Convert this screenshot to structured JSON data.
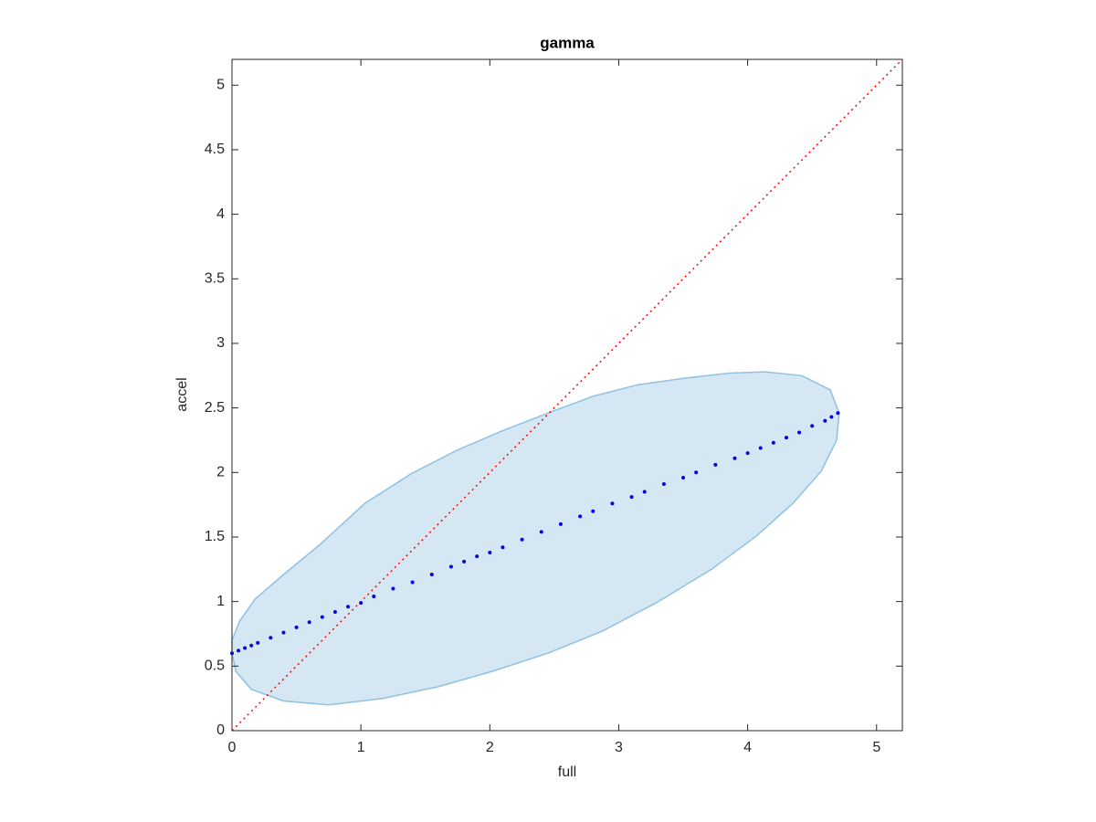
{
  "chart_data": {
    "type": "scatter",
    "title": "gamma",
    "xlabel": "full",
    "ylabel": "accel",
    "xlim": [
      0,
      5.2
    ],
    "ylim": [
      0,
      5.2
    ],
    "xticks": [
      0,
      1,
      2,
      3,
      4,
      5
    ],
    "yticks": [
      0,
      0.5,
      1,
      1.5,
      2,
      2.5,
      3,
      3.5,
      4,
      4.5,
      5
    ],
    "box": true,
    "region": {
      "color": "#d6e7f4",
      "edge_color": "#8fc1e3",
      "x": [
        0,
        0.06,
        0.18,
        0.4,
        0.68,
        1.03,
        1.39,
        1.74,
        2.09,
        2.45,
        2.8,
        3.15,
        3.51,
        3.86,
        4.14,
        4.42,
        4.64,
        4.71,
        4.69,
        4.57,
        4.35,
        4.07,
        3.72,
        3.29,
        2.87,
        2.45,
        2.02,
        1.6,
        1.17,
        0.75,
        0.4,
        0.15,
        0.03,
        0
      ],
      "y": [
        0.7,
        0.85,
        1.02,
        1.21,
        1.44,
        1.76,
        1.99,
        2.17,
        2.32,
        2.46,
        2.59,
        2.68,
        2.73,
        2.77,
        2.78,
        2.75,
        2.64,
        2.46,
        2.25,
        2.01,
        1.76,
        1.51,
        1.25,
        0.99,
        0.77,
        0.6,
        0.46,
        0.34,
        0.25,
        0.2,
        0.23,
        0.32,
        0.46,
        0.6
      ]
    },
    "points": {
      "color": "#0000ee",
      "x": [
        0,
        0.05,
        0.1,
        0.15,
        0.2,
        0.3,
        0.4,
        0.5,
        0.6,
        0.7,
        0.8,
        0.9,
        1.0,
        1.1,
        1.25,
        1.4,
        1.55,
        1.7,
        1.8,
        1.9,
        2.0,
        2.1,
        2.25,
        2.4,
        2.55,
        2.7,
        2.8,
        2.95,
        3.1,
        3.2,
        3.35,
        3.5,
        3.6,
        3.75,
        3.9,
        4.0,
        4.1,
        4.2,
        4.3,
        4.4,
        4.5,
        4.6,
        4.65,
        4.7
      ],
      "y": [
        0.6,
        0.62,
        0.64,
        0.66,
        0.68,
        0.72,
        0.76,
        0.8,
        0.84,
        0.88,
        0.92,
        0.96,
        0.99,
        1.04,
        1.1,
        1.15,
        1.21,
        1.27,
        1.31,
        1.35,
        1.38,
        1.42,
        1.48,
        1.54,
        1.6,
        1.66,
        1.7,
        1.76,
        1.81,
        1.85,
        1.91,
        1.96,
        2.0,
        2.06,
        2.11,
        2.15,
        2.19,
        2.23,
        2.27,
        2.31,
        2.36,
        2.4,
        2.43,
        2.46
      ]
    },
    "reference_line": {
      "color": "#ff0000",
      "x": [
        0,
        5.2
      ],
      "y": [
        0,
        5.2
      ]
    }
  }
}
